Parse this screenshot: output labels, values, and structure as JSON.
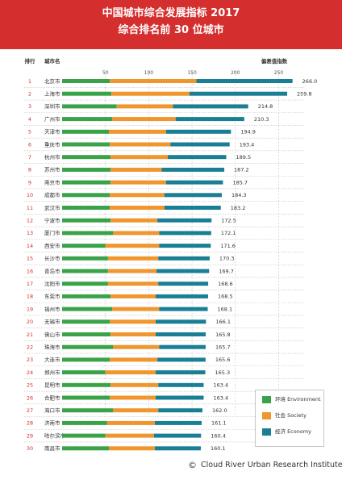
{
  "header": {
    "title_line1": "中国城市综合发展指标 2017",
    "title_line2": "综合排名前 30 位城市"
  },
  "chart_data": {
    "type": "bar",
    "orientation": "horizontal",
    "stacked": true,
    "rank_header": "排行",
    "city_header": "城市名",
    "total_header": "偏差值指数",
    "x_ticks": [
      50,
      100,
      150,
      200,
      250
    ],
    "xlim": [
      0,
      280
    ],
    "series": [
      {
        "name": "环境 Environment",
        "color": "#3aa34a"
      },
      {
        "name": "社会 Society",
        "color": "#f0962e"
      },
      {
        "name": "经济 Economy",
        "color": "#1a7f95"
      }
    ],
    "rows": [
      {
        "rank": "1",
        "city": "北京市",
        "total": "266.0",
        "values": [
          55,
          100,
          111
        ]
      },
      {
        "rank": "2",
        "city": "上海市",
        "total": "259.8",
        "values": [
          57,
          90,
          112.8
        ]
      },
      {
        "rank": "3",
        "city": "深圳市",
        "total": "214.8",
        "values": [
          63,
          65,
          86.8
        ]
      },
      {
        "rank": "4",
        "city": "广州市",
        "total": "210.3",
        "values": [
          58,
          73,
          79.3
        ]
      },
      {
        "rank": "5",
        "city": "天津市",
        "total": "194.9",
        "values": [
          54,
          66,
          74.9
        ]
      },
      {
        "rank": "6",
        "city": "重庆市",
        "total": "193.4",
        "values": [
          55,
          70,
          68.4
        ]
      },
      {
        "rank": "7",
        "city": "杭州市",
        "total": "189.5",
        "values": [
          56,
          66,
          67.5
        ]
      },
      {
        "rank": "8",
        "city": "苏州市",
        "total": "187.2",
        "values": [
          56,
          59,
          72.2
        ]
      },
      {
        "rank": "9",
        "city": "南京市",
        "total": "185.7",
        "values": [
          56,
          64,
          65.7
        ]
      },
      {
        "rank": "10",
        "city": "成都市",
        "total": "184.3",
        "values": [
          55,
          63,
          66.3
        ]
      },
      {
        "rank": "11",
        "city": "武汉市",
        "total": "183.2",
        "values": [
          55,
          63,
          65.2
        ]
      },
      {
        "rank": "12",
        "city": "宁波市",
        "total": "172.5",
        "values": [
          56,
          54,
          62.5
        ]
      },
      {
        "rank": "13",
        "city": "厦门市",
        "total": "172.1",
        "values": [
          59,
          53,
          60.1
        ]
      },
      {
        "rank": "14",
        "city": "西安市",
        "total": "171.6",
        "values": [
          50,
          62,
          59.6
        ]
      },
      {
        "rank": "15",
        "city": "长沙市",
        "total": "170.3",
        "values": [
          53,
          58,
          59.3
        ]
      },
      {
        "rank": "16",
        "city": "青岛市",
        "total": "169.7",
        "values": [
          53,
          56,
          60.7
        ]
      },
      {
        "rank": "17",
        "city": "沈阳市",
        "total": "168.6",
        "values": [
          53,
          58,
          57.6
        ]
      },
      {
        "rank": "18",
        "city": "东莞市",
        "total": "168.5",
        "values": [
          56,
          52,
          60.5
        ]
      },
      {
        "rank": "19",
        "city": "福州市",
        "total": "168.1",
        "values": [
          58,
          54,
          56.1
        ]
      },
      {
        "rank": "20",
        "city": "无锡市",
        "total": "166.1",
        "values": [
          55,
          53,
          58.1
        ]
      },
      {
        "rank": "21",
        "city": "佛山市",
        "total": "165.8",
        "values": [
          56,
          52,
          57.8
        ]
      },
      {
        "rank": "22",
        "city": "珠海市",
        "total": "165.7",
        "values": [
          59,
          53,
          53.7
        ]
      },
      {
        "rank": "23",
        "city": "大连市",
        "total": "165.6",
        "values": [
          55,
          55,
          55.6
        ]
      },
      {
        "rank": "24",
        "city": "郑州市",
        "total": "165.3",
        "values": [
          50,
          58,
          57.3
        ]
      },
      {
        "rank": "25",
        "city": "昆明市",
        "total": "163.4",
        "values": [
          56,
          55,
          52.4
        ]
      },
      {
        "rank": "26",
        "city": "合肥市",
        "total": "163.4",
        "values": [
          55,
          53,
          55.4
        ]
      },
      {
        "rank": "27",
        "city": "海口市",
        "total": "162.0",
        "values": [
          59,
          52,
          51
        ]
      },
      {
        "rank": "28",
        "city": "济南市",
        "total": "161.1",
        "values": [
          52,
          55,
          54.1
        ]
      },
      {
        "rank": "29",
        "city": "哈尔滨市",
        "total": "160.4",
        "values": [
          50,
          56,
          54.4
        ]
      },
      {
        "rank": "30",
        "city": "南昌市",
        "total": "160.1",
        "values": [
          54,
          53,
          53.1
        ]
      }
    ]
  },
  "footer": {
    "copyright_symbol": "©",
    "credit": "Cloud River Urban Research Institute"
  }
}
